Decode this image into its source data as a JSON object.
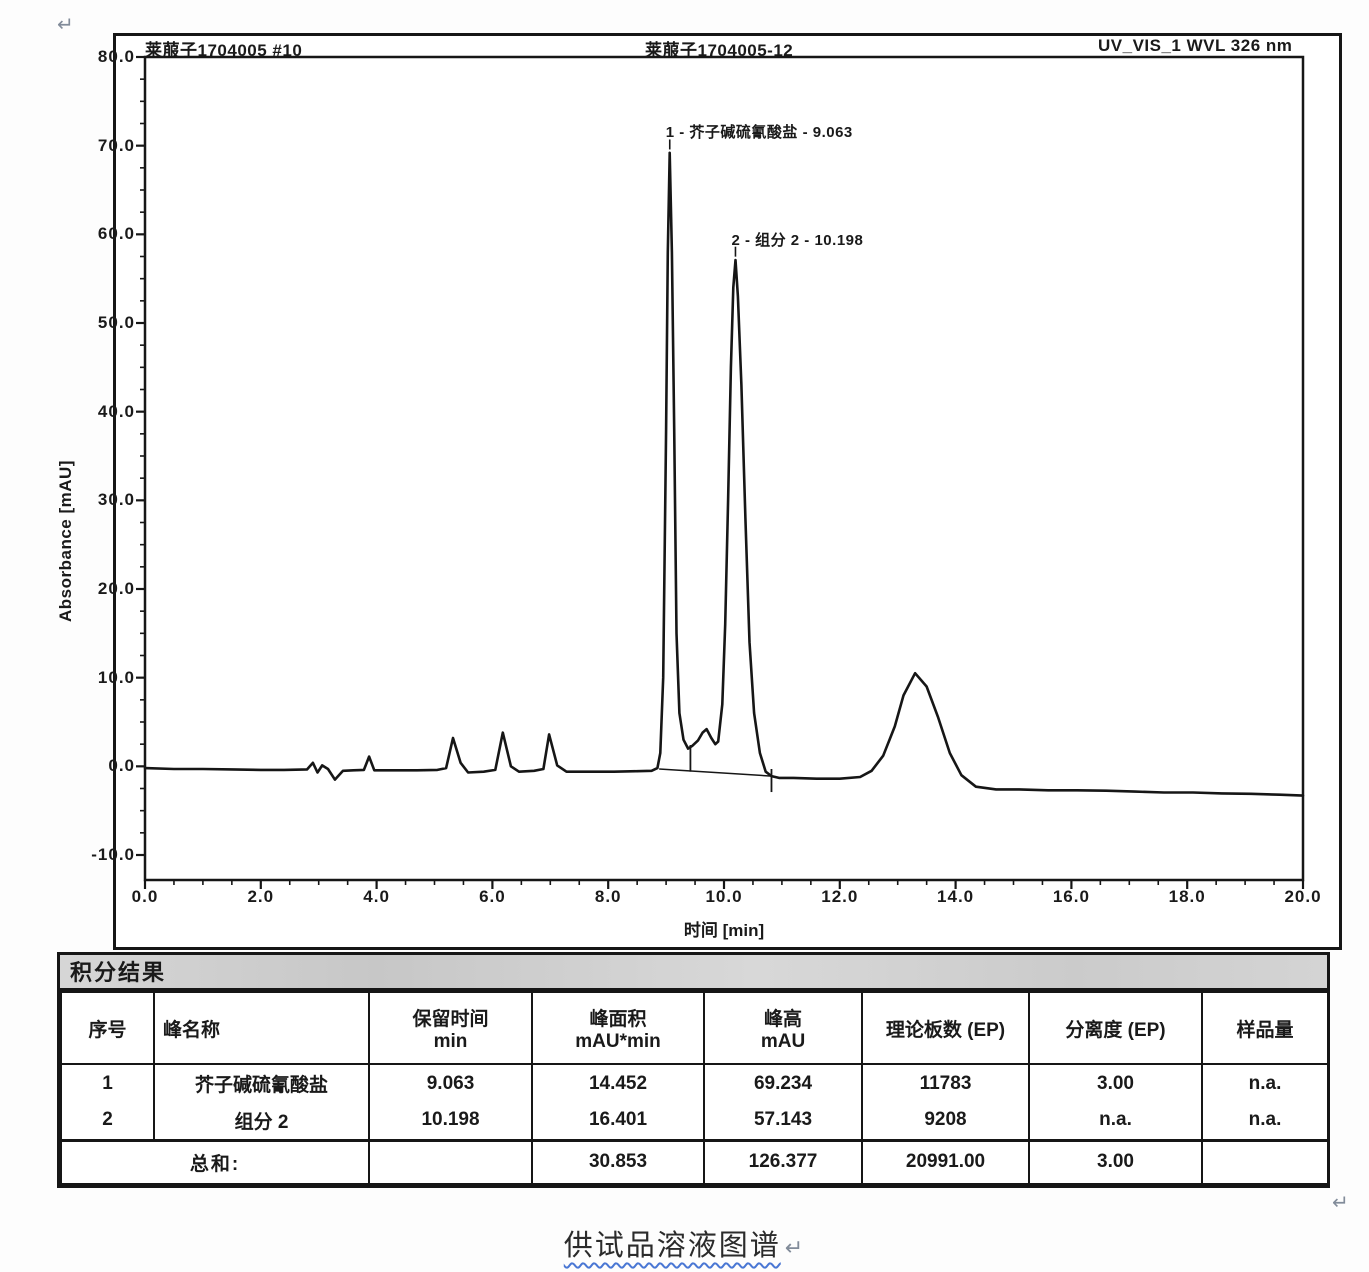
{
  "page": {
    "return_mark": "↵"
  },
  "header": {
    "left": "莱菔子1704005 #10",
    "middle": "莱菔子1704005-12",
    "right": "UV_VIS_1 WVL 326 nm"
  },
  "chart_data": {
    "type": "line",
    "title": "UV_VIS_1 WVL 326 nm",
    "xlabel": "时间 [min]",
    "ylabel": "Absorbance [mAU]",
    "xlim": [
      0,
      20
    ],
    "ylim": [
      -10,
      80
    ],
    "grid": false,
    "legend": "none",
    "x_tick_values": [
      0,
      2,
      4,
      6,
      8,
      10,
      12,
      14,
      16,
      18,
      20
    ],
    "x_tick_labels": [
      "0.0",
      "2.0",
      "4.0",
      "6.0",
      "8.0",
      "10.0",
      "12.0",
      "14.0",
      "16.0",
      "18.0",
      "20.0"
    ],
    "y_tick_values": [
      80,
      70,
      60,
      50,
      40,
      30,
      20,
      10,
      0,
      -10
    ],
    "y_tick_labels": [
      "80.0",
      "70.0",
      "60.0",
      "50.0",
      "40.0",
      "30.0",
      "20.0",
      "10.0",
      "0.0",
      "-10.0"
    ],
    "peaks": [
      {
        "label": "1 - 芥子碱硫氰酸盐 - 9.063",
        "name": "芥子碱硫氰酸盐",
        "retention_min": 9.063,
        "height_mau": 69.234
      },
      {
        "label": "2 - 组分 2 - 10.198",
        "name": "组分 2",
        "retention_min": 10.198,
        "height_mau": 57.143
      }
    ],
    "integration_marks": [
      {
        "x": 9.42,
        "y1": 2.4,
        "y2": -0.6
      },
      {
        "x": 10.82,
        "y1": -0.3,
        "y2": -2.9
      }
    ],
    "baseline_segment": {
      "x1": 8.88,
      "y1": -0.3,
      "x2": 10.82,
      "y2": -1.1
    },
    "series": [
      {
        "name": "UV_VIS_1 WVL 326 nm",
        "points": [
          [
            0,
            -0.2
          ],
          [
            0.5,
            -0.3
          ],
          [
            1,
            -0.3
          ],
          [
            1.5,
            -0.35
          ],
          [
            2,
            -0.4
          ],
          [
            2.4,
            -0.4
          ],
          [
            2.8,
            -0.35
          ],
          [
            2.9,
            0.4
          ],
          [
            2.98,
            -0.7
          ],
          [
            3.06,
            0.1
          ],
          [
            3.16,
            -0.3
          ],
          [
            3.28,
            -1.5
          ],
          [
            3.42,
            -0.5
          ],
          [
            3.6,
            -0.45
          ],
          [
            3.78,
            -0.4
          ],
          [
            3.87,
            1.1
          ],
          [
            3.96,
            -0.45
          ],
          [
            4.3,
            -0.45
          ],
          [
            4.7,
            -0.45
          ],
          [
            5.05,
            -0.4
          ],
          [
            5.2,
            -0.2
          ],
          [
            5.32,
            3.2
          ],
          [
            5.45,
            0.4
          ],
          [
            5.58,
            -0.7
          ],
          [
            5.85,
            -0.6
          ],
          [
            6.05,
            -0.4
          ],
          [
            6.18,
            3.8
          ],
          [
            6.32,
            0
          ],
          [
            6.46,
            -0.6
          ],
          [
            6.72,
            -0.5
          ],
          [
            6.88,
            -0.3
          ],
          [
            6.98,
            3.6
          ],
          [
            7.12,
            0.1
          ],
          [
            7.28,
            -0.6
          ],
          [
            7.7,
            -0.6
          ],
          [
            8.1,
            -0.6
          ],
          [
            8.5,
            -0.55
          ],
          [
            8.75,
            -0.5
          ],
          [
            8.85,
            -0.2
          ],
          [
            8.9,
            1.5
          ],
          [
            8.95,
            10
          ],
          [
            9,
            38
          ],
          [
            9.03,
            58
          ],
          [
            9.063,
            69.2
          ],
          [
            9.1,
            58
          ],
          [
            9.14,
            38
          ],
          [
            9.18,
            15
          ],
          [
            9.23,
            6
          ],
          [
            9.3,
            3
          ],
          [
            9.38,
            2
          ],
          [
            9.45,
            2.3
          ],
          [
            9.55,
            2.9
          ],
          [
            9.63,
            3.8
          ],
          [
            9.7,
            4.2
          ],
          [
            9.78,
            3.2
          ],
          [
            9.85,
            2.5
          ],
          [
            9.9,
            2.8
          ],
          [
            9.97,
            7
          ],
          [
            10.02,
            16
          ],
          [
            10.07,
            30
          ],
          [
            10.12,
            45
          ],
          [
            10.16,
            54
          ],
          [
            10.198,
            57.1
          ],
          [
            10.24,
            53
          ],
          [
            10.3,
            43
          ],
          [
            10.37,
            28
          ],
          [
            10.44,
            14
          ],
          [
            10.52,
            6
          ],
          [
            10.62,
            1.5
          ],
          [
            10.72,
            -0.6
          ],
          [
            10.82,
            -1.1
          ],
          [
            10.95,
            -1.3
          ],
          [
            11.2,
            -1.3
          ],
          [
            11.6,
            -1.4
          ],
          [
            12,
            -1.4
          ],
          [
            12.35,
            -1.2
          ],
          [
            12.55,
            -0.5
          ],
          [
            12.75,
            1.2
          ],
          [
            12.95,
            4.5
          ],
          [
            13.1,
            8
          ],
          [
            13.3,
            10.5
          ],
          [
            13.5,
            9
          ],
          [
            13.7,
            5.5
          ],
          [
            13.9,
            1.5
          ],
          [
            14.1,
            -1
          ],
          [
            14.35,
            -2.3
          ],
          [
            14.7,
            -2.6
          ],
          [
            15.1,
            -2.6
          ],
          [
            15.6,
            -2.7
          ],
          [
            16.1,
            -2.7
          ],
          [
            16.6,
            -2.75
          ],
          [
            17.1,
            -2.85
          ],
          [
            17.6,
            -2.95
          ],
          [
            18.1,
            -2.95
          ],
          [
            18.6,
            -3.05
          ],
          [
            19.1,
            -3.1
          ],
          [
            19.6,
            -3.2
          ],
          [
            20,
            -3.3
          ]
        ]
      }
    ]
  },
  "table": {
    "title": "积分结果",
    "columns": [
      {
        "label": "序号",
        "unit": ""
      },
      {
        "label": "峰名称",
        "unit": ""
      },
      {
        "label": "保留时间",
        "unit": "min"
      },
      {
        "label": "峰面积",
        "unit": "mAU*min"
      },
      {
        "label": "峰高",
        "unit": "mAU"
      },
      {
        "label": "理论板数 (EP)",
        "unit": ""
      },
      {
        "label": "分离度 (EP)",
        "unit": ""
      },
      {
        "label": "样品量",
        "unit": ""
      }
    ],
    "rows": [
      {
        "no": "1",
        "name": "芥子碱硫氰酸盐",
        "retention": "9.063",
        "area": "14.452",
        "height": "69.234",
        "plates": "11783",
        "resolution": "3.00",
        "amount": "n.a."
      },
      {
        "no": "2",
        "name": "组分 2",
        "retention": "10.198",
        "area": "16.401",
        "height": "57.143",
        "plates": "9208",
        "resolution": "n.a.",
        "amount": "n.a."
      }
    ],
    "total": {
      "label": "总和:",
      "retention": "",
      "area": "30.853",
      "height": "126.377",
      "plates": "20991.00",
      "resolution": "3.00",
      "amount": ""
    }
  },
  "caption": {
    "text": "供试品溶液图谱",
    "return_mark": "↵"
  }
}
